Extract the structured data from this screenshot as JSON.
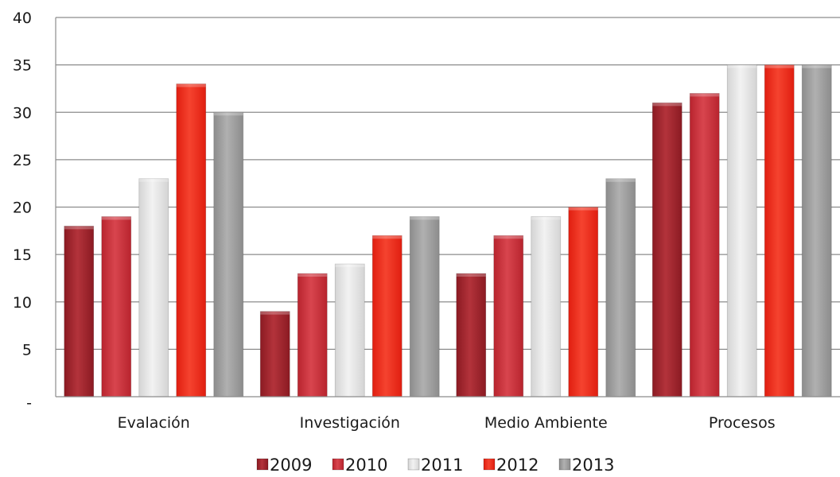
{
  "chart_data": {
    "type": "bar",
    "categories": [
      "Evalación",
      "Investigación",
      "Medio Ambiente",
      "Procesos"
    ],
    "series": [
      {
        "name": "2009",
        "values": [
          18,
          9,
          13,
          31
        ],
        "color": "#8b1a22",
        "color_light": "#b3333b"
      },
      {
        "name": "2010",
        "values": [
          19,
          13,
          17,
          32
        ],
        "color": "#b8242e",
        "color_light": "#d8454e"
      },
      {
        "name": "2011",
        "values": [
          23,
          14,
          19,
          35
        ],
        "color": "#d4d4d4",
        "color_light": "#f2f2f2"
      },
      {
        "name": "2012",
        "values": [
          33,
          17,
          20,
          35
        ],
        "color": "#e01e10",
        "color_light": "#f5432f"
      },
      {
        "name": "2013",
        "values": [
          30,
          19,
          23,
          35
        ],
        "color": "#8c8c8c",
        "color_light": "#b0b0b0"
      }
    ],
    "ylim": [
      0,
      40
    ],
    "yticks": [
      0,
      5,
      10,
      15,
      20,
      25,
      30,
      35,
      40
    ],
    "ytick_labels": [
      "-",
      "5",
      "10",
      "15",
      "20",
      "25",
      "30",
      "35",
      "40"
    ],
    "grid": true,
    "legend_position": "bottom"
  }
}
